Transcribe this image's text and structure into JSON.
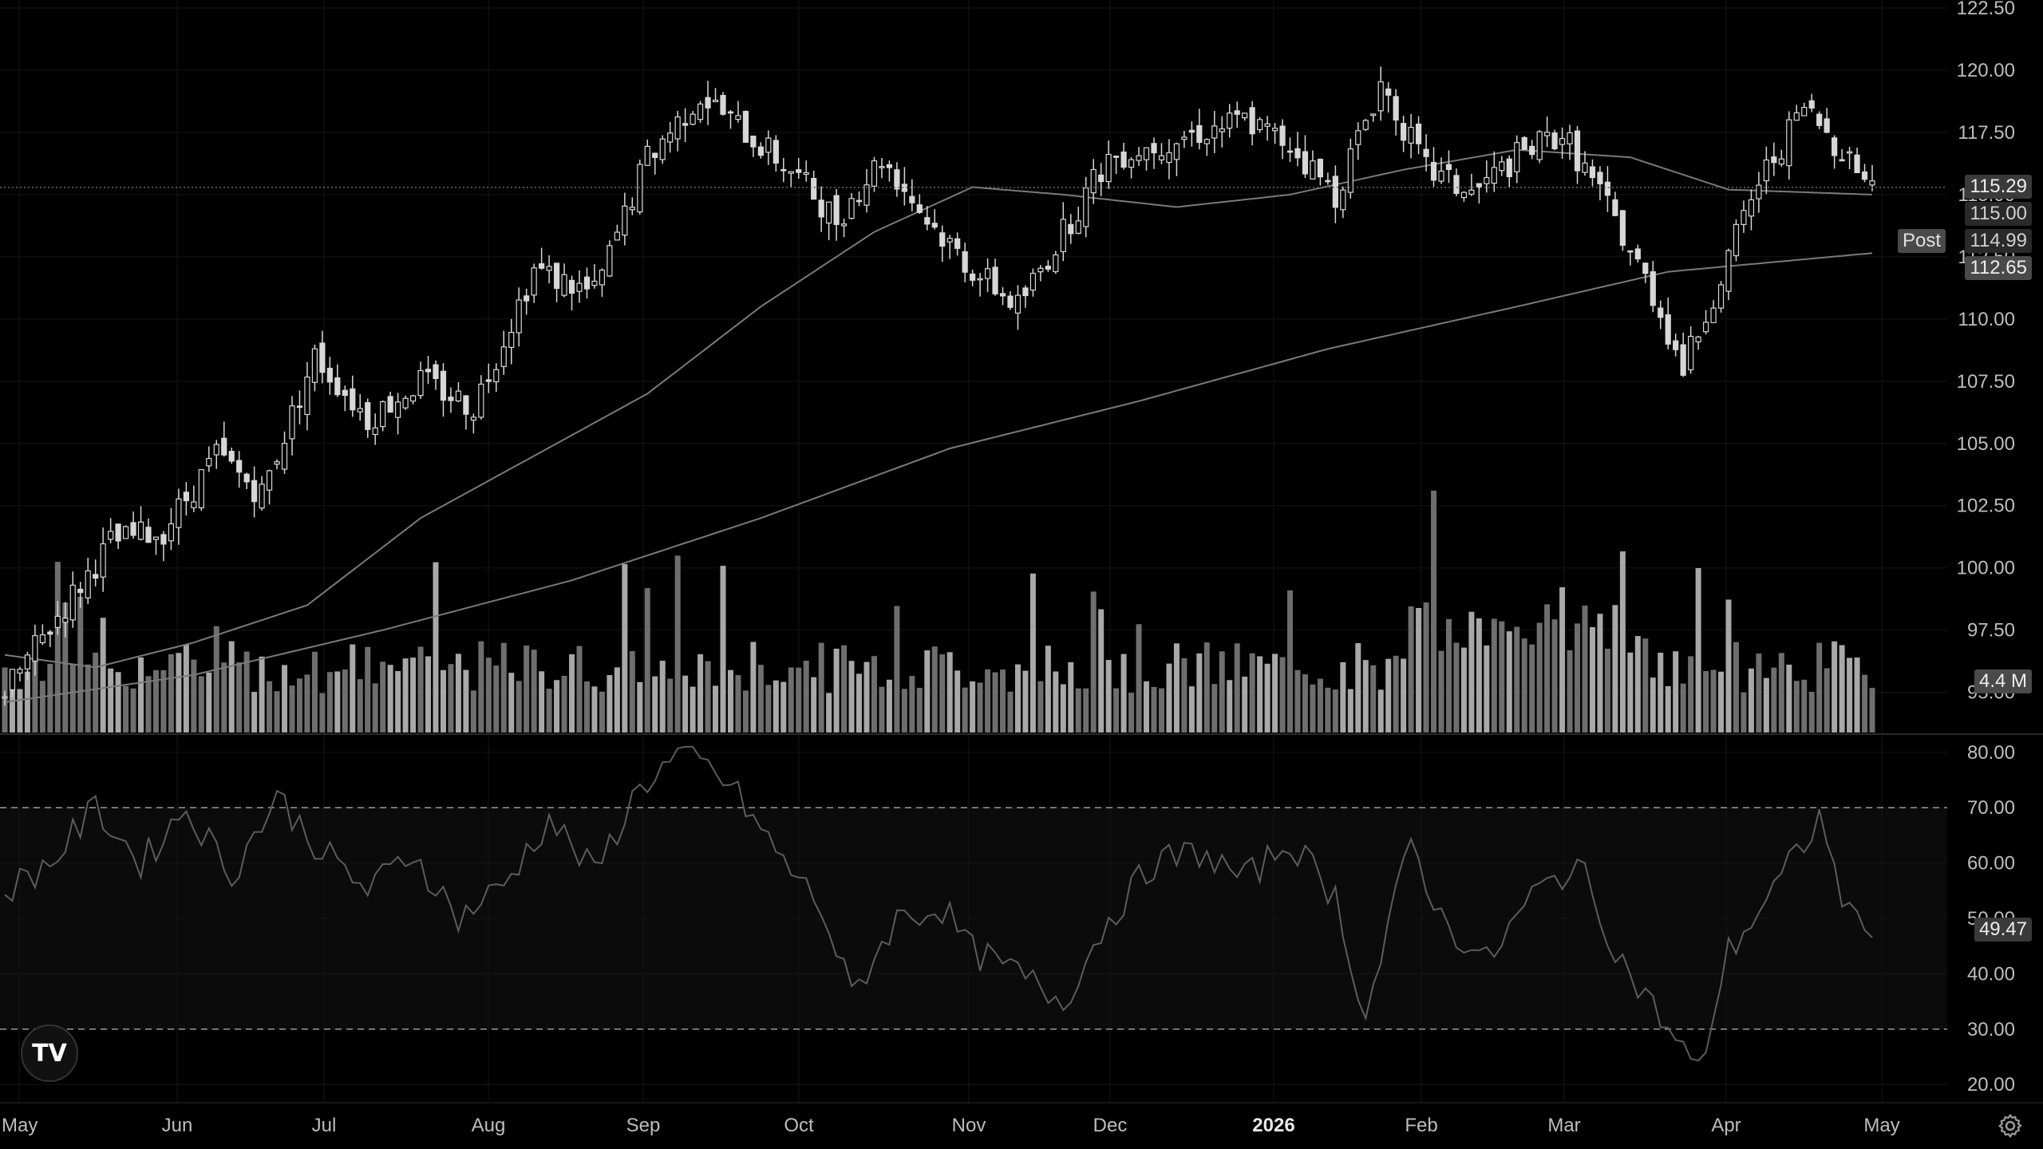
{
  "brand": {
    "logo_text": "TV",
    "logo_icon": "tradingview-logo-icon"
  },
  "colors": {
    "background": "#000000",
    "grid": "#161616",
    "candle": "#d7d7d7",
    "volume": "#8a8a8a",
    "ma_line": "#7a7a7a",
    "rsi_line": "#5c5c5c",
    "label_bg": "#3a3a3a",
    "text": "#bdbdbd"
  },
  "price_badges": {
    "last": "115.29",
    "level_115": "115.00",
    "post_tag": "Post",
    "post_price": "114.99",
    "ma_value": "112.65",
    "volume_value": "4.4 M",
    "rsi_value": "49.47"
  },
  "settings_icon": "gear-icon",
  "chart_data": {
    "type": "candlestick",
    "x_axis": {
      "tick_labels": [
        "May",
        "Jun",
        "Jul",
        "Aug",
        "Sep",
        "Oct",
        "Nov",
        "Dec",
        "2026",
        "Feb",
        "Mar",
        "Apr",
        "May"
      ]
    },
    "price_axis": {
      "ticks": [
        "122.50",
        "120.00",
        "117.50",
        "115.00",
        "112.50",
        "110.00",
        "107.50",
        "105.00",
        "102.50",
        "100.00",
        "97.50",
        "95.00"
      ],
      "range": [
        93.0,
        122.5
      ]
    },
    "rsi_axis": {
      "ticks": [
        "80.00",
        "70.00",
        "60.00",
        "50.00",
        "40.00",
        "30.00",
        "20.00"
      ],
      "range": [
        17,
        83
      ],
      "overbought": 70,
      "oversold": 30
    },
    "price_close_path": [
      [
        0,
        95.0
      ],
      [
        8,
        98.5
      ],
      [
        14,
        101.0
      ],
      [
        21,
        101.5
      ],
      [
        28,
        104.5
      ],
      [
        34,
        103.0
      ],
      [
        41,
        108.5
      ],
      [
        48,
        106.0
      ],
      [
        55,
        107.5
      ],
      [
        62,
        106.5
      ],
      [
        70,
        112.0
      ],
      [
        78,
        111.0
      ],
      [
        85,
        116.5
      ],
      [
        92,
        119.0
      ],
      [
        98,
        117.5
      ],
      [
        104,
        116.0
      ],
      [
        110,
        114.0
      ],
      [
        116,
        116.5
      ],
      [
        122,
        114.0
      ],
      [
        128,
        112.0
      ],
      [
        134,
        110.5
      ],
      [
        140,
        113.5
      ],
      [
        146,
        116.5
      ],
      [
        152,
        117.0
      ],
      [
        158,
        117.5
      ],
      [
        164,
        118.0
      ],
      [
        170,
        117.0
      ],
      [
        176,
        115.0
      ],
      [
        182,
        119.5
      ],
      [
        188,
        116.0
      ],
      [
        194,
        115.0
      ],
      [
        200,
        116.5
      ],
      [
        206,
        117.5
      ],
      [
        212,
        114.5
      ],
      [
        218,
        111.0
      ],
      [
        222,
        108.0
      ],
      [
        228,
        112.5
      ],
      [
        232,
        115.5
      ],
      [
        238,
        118.5
      ],
      [
        244,
        116.5
      ],
      [
        247,
        115.29
      ]
    ],
    "ma_short_path": [
      [
        0,
        96.5
      ],
      [
        12,
        96.0
      ],
      [
        25,
        97.0
      ],
      [
        40,
        98.5
      ],
      [
        55,
        102.0
      ],
      [
        70,
        104.5
      ],
      [
        85,
        107.0
      ],
      [
        100,
        110.5
      ],
      [
        115,
        113.5
      ],
      [
        128,
        115.3
      ],
      [
        140,
        115.0
      ],
      [
        155,
        114.5
      ],
      [
        170,
        115.0
      ],
      [
        185,
        116.0
      ],
      [
        200,
        116.8
      ],
      [
        215,
        116.5
      ],
      [
        228,
        115.2
      ],
      [
        247,
        115.0
      ]
    ],
    "ma_long_path": [
      [
        0,
        94.6
      ],
      [
        25,
        95.7
      ],
      [
        50,
        97.5
      ],
      [
        75,
        99.5
      ],
      [
        100,
        102.0
      ],
      [
        125,
        104.8
      ],
      [
        150,
        106.7
      ],
      [
        175,
        108.8
      ],
      [
        200,
        110.5
      ],
      [
        220,
        111.9
      ],
      [
        247,
        112.65
      ]
    ],
    "volume_range": [
      0,
      14
    ],
    "rsi_path": [
      [
        0,
        55
      ],
      [
        6,
        60
      ],
      [
        12,
        70
      ],
      [
        18,
        60
      ],
      [
        24,
        70
      ],
      [
        30,
        58
      ],
      [
        36,
        72
      ],
      [
        42,
        62
      ],
      [
        48,
        55
      ],
      [
        54,
        62
      ],
      [
        60,
        50
      ],
      [
        66,
        56
      ],
      [
        72,
        68
      ],
      [
        78,
        58
      ],
      [
        84,
        74
      ],
      [
        90,
        80
      ],
      [
        96,
        74
      ],
      [
        102,
        62
      ],
      [
        108,
        52
      ],
      [
        112,
        36
      ],
      [
        118,
        50
      ],
      [
        124,
        52
      ],
      [
        128,
        44
      ],
      [
        134,
        40
      ],
      [
        140,
        35
      ],
      [
        146,
        50
      ],
      [
        152,
        60
      ],
      [
        158,
        62
      ],
      [
        164,
        57
      ],
      [
        170,
        64
      ],
      [
        176,
        54
      ],
      [
        180,
        32
      ],
      [
        186,
        64
      ],
      [
        190,
        50
      ],
      [
        196,
        42
      ],
      [
        202,
        54
      ],
      [
        208,
        60
      ],
      [
        214,
        42
      ],
      [
        218,
        34
      ],
      [
        224,
        22
      ],
      [
        228,
        44
      ],
      [
        234,
        55
      ],
      [
        240,
        68
      ],
      [
        244,
        50
      ],
      [
        247,
        49.47
      ]
    ]
  }
}
